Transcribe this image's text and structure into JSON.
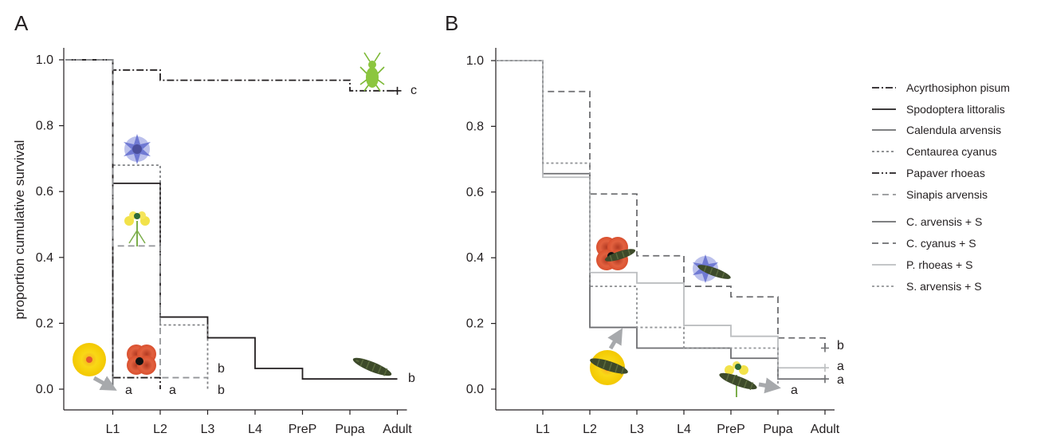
{
  "chart_data": [
    {
      "type": "line",
      "step": true,
      "panel_label": "A",
      "ylabel": "proportion cumulative survival",
      "xlabel": "",
      "categories": [
        "",
        "L1",
        "L2",
        "L3",
        "L4",
        "PreP",
        "Pupa",
        "Adult"
      ],
      "yticks": [
        "0.0",
        "0.2",
        "0.4",
        "0.6",
        "0.8",
        "1.0"
      ],
      "ylim": [
        0,
        1.0
      ],
      "grid": false,
      "series": [
        {
          "name": "Acyrthosiphon pisum",
          "color": "#231f20",
          "dash": "dashdot",
          "x": [
            0,
            1,
            2,
            3,
            4,
            5,
            6,
            7
          ],
          "values": [
            1.0,
            0.969,
            0.938,
            0.938,
            0.938,
            0.938,
            0.906,
            0.906
          ],
          "end_label": "c",
          "censor_mark": true
        },
        {
          "name": "Spodoptera littoralis",
          "color": "#231f20",
          "dash": "solid",
          "x": [
            0,
            1,
            2,
            3,
            4,
            5,
            6,
            7
          ],
          "values": [
            1.0,
            0.625,
            0.219,
            0.156,
            0.063,
            0.031,
            0.031,
            0.031
          ],
          "end_label": "b"
        },
        {
          "name": "Calendula arvensis",
          "color": "#6d6e71",
          "dash": "solid",
          "x": [
            0,
            1
          ],
          "values": [
            1.0,
            0.0
          ],
          "end_label": "a"
        },
        {
          "name": "Centaurea cyanus",
          "color": "#808285",
          "dash": "dotted",
          "x": [
            0,
            1,
            2,
            3
          ],
          "values": [
            1.0,
            0.68,
            0.195,
            0.0
          ],
          "end_label": "b"
        },
        {
          "name": "Papaver rhoeas",
          "color": "#231f20",
          "dash": "dashdot",
          "x": [
            0,
            1,
            2
          ],
          "values": [
            1.0,
            0.035,
            0.0
          ],
          "end_label": "a"
        },
        {
          "name": "Sinapis arvensis",
          "color": "#939598",
          "dash": "dashed",
          "x": [
            0,
            1,
            2,
            3
          ],
          "values": [
            1.0,
            0.435,
            0.035,
            0.035
          ],
          "end_label": "b"
        }
      ]
    },
    {
      "type": "line",
      "step": true,
      "panel_label": "B",
      "ylabel": "",
      "xlabel": "",
      "categories": [
        "",
        "L1",
        "L2",
        "L3",
        "L4",
        "PreP",
        "Pupa",
        "Adult"
      ],
      "yticks": [
        "0.0",
        "0.2",
        "0.4",
        "0.6",
        "0.8",
        "1.0"
      ],
      "ylim": [
        0,
        1.0
      ],
      "grid": false,
      "series": [
        {
          "name": "C. arvensis + S",
          "color": "#6d6e71",
          "dash": "solid",
          "x": [
            0,
            1,
            2,
            3,
            4,
            5,
            6,
            7
          ],
          "values": [
            1.0,
            0.656,
            0.188,
            0.125,
            0.125,
            0.094,
            0.031,
            0.031
          ],
          "end_label": "a",
          "censor_mark": true
        },
        {
          "name": "C. cyanus + S",
          "color": "#6d6e71",
          "dash": "dashed",
          "x": [
            0,
            1,
            2,
            3,
            4,
            5,
            6,
            7
          ],
          "values": [
            1.0,
            0.906,
            0.594,
            0.406,
            0.313,
            0.281,
            0.156,
            0.125
          ],
          "end_label": "b",
          "censor_mark": true
        },
        {
          "name": "P. rhoeas + S",
          "color": "#bcbec0",
          "dash": "solid",
          "x": [
            0,
            1,
            2,
            3,
            4,
            5,
            6,
            7
          ],
          "values": [
            1.0,
            0.645,
            0.355,
            0.323,
            0.194,
            0.161,
            0.065,
            0.065
          ],
          "end_label": "a",
          "censor_mark": true
        },
        {
          "name": "S. arvensis + S",
          "color": "#939598",
          "dash": "dotted",
          "x": [
            0,
            1,
            2,
            3,
            4,
            5,
            6
          ],
          "values": [
            1.0,
            0.688,
            0.313,
            0.188,
            0.125,
            0.125,
            0.0
          ],
          "end_label": "a"
        }
      ]
    }
  ],
  "legend": {
    "placement": "right",
    "items": [
      {
        "label": "Acyrthosiphon pisum",
        "color": "#231f20",
        "dash": "dashdot"
      },
      {
        "label": "Spodoptera littoralis",
        "color": "#231f20",
        "dash": "solid"
      },
      {
        "label": "Calendula arvensis",
        "color": "#6d6e71",
        "dash": "solid"
      },
      {
        "label": "Centaurea cyanus",
        "color": "#808285",
        "dash": "dotted"
      },
      {
        "label": "Papaver rhoeas",
        "color": "#231f20",
        "dash": "dashdotdot"
      },
      {
        "label": "Sinapis arvensis",
        "color": "#939598",
        "dash": "dashed"
      },
      {
        "label": "C. arvensis + S",
        "color": "#6d6e71",
        "dash": "solid"
      },
      {
        "label": "C. cyanus + S",
        "color": "#6d6e71",
        "dash": "dashed"
      },
      {
        "label": "P. rhoeas + S",
        "color": "#bcbec0",
        "dash": "solid"
      },
      {
        "label": "S. arvensis + S",
        "color": "#939598",
        "dash": "dotted"
      }
    ]
  },
  "colors": {
    "axis": "#231f20",
    "arrow": "#a7a9ac",
    "calendula_petal": "#f5d000",
    "cornflower": "#7b86d8",
    "poppy": "#e0583a",
    "aphid": "#8cc63f",
    "caterpillar": "#3d4a2a",
    "mustard": "#f2e24a"
  }
}
